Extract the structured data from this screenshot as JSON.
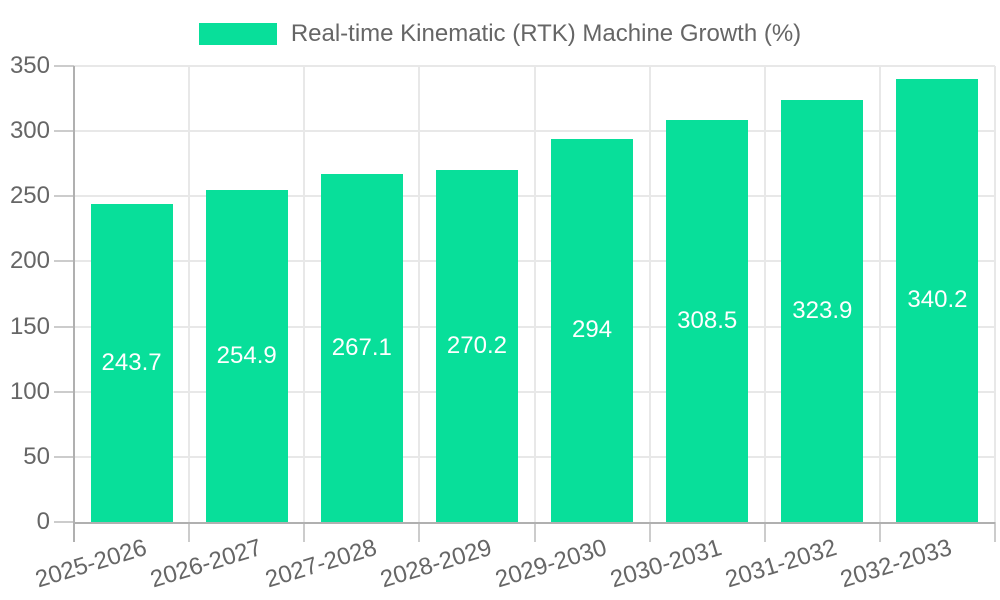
{
  "legend": {
    "label": "Real-time Kinematic (RTK) Machine Growth (%)"
  },
  "chart_data": {
    "type": "bar",
    "title": "Real-time Kinematic (RTK) Machine Growth (%)",
    "categories": [
      "2025-2026",
      "2026-2027",
      "2027-2028",
      "2028-2029",
      "2029-2030",
      "2030-2031",
      "2031-2032",
      "2032-2033"
    ],
    "values": [
      243.7,
      254.9,
      267.1,
      270.2,
      294,
      308.5,
      323.9,
      340.2
    ],
    "value_labels": [
      "243.7",
      "254.9",
      "267.1",
      "270.2",
      "294",
      "308.5",
      "323.9",
      "340.2"
    ],
    "xlabel": "",
    "ylabel": "",
    "ylim": [
      0,
      350
    ],
    "yticks": [
      0,
      50,
      100,
      150,
      200,
      250,
      300,
      350
    ],
    "grid": true,
    "legend_position": "top",
    "colors": {
      "bar": "#08df9a",
      "value_text": "#ffffff",
      "axis_text": "#666666",
      "gridline": "#e8e8e8",
      "tick_mark": "#cccccc",
      "axis_line": "#b0b0b0"
    }
  }
}
